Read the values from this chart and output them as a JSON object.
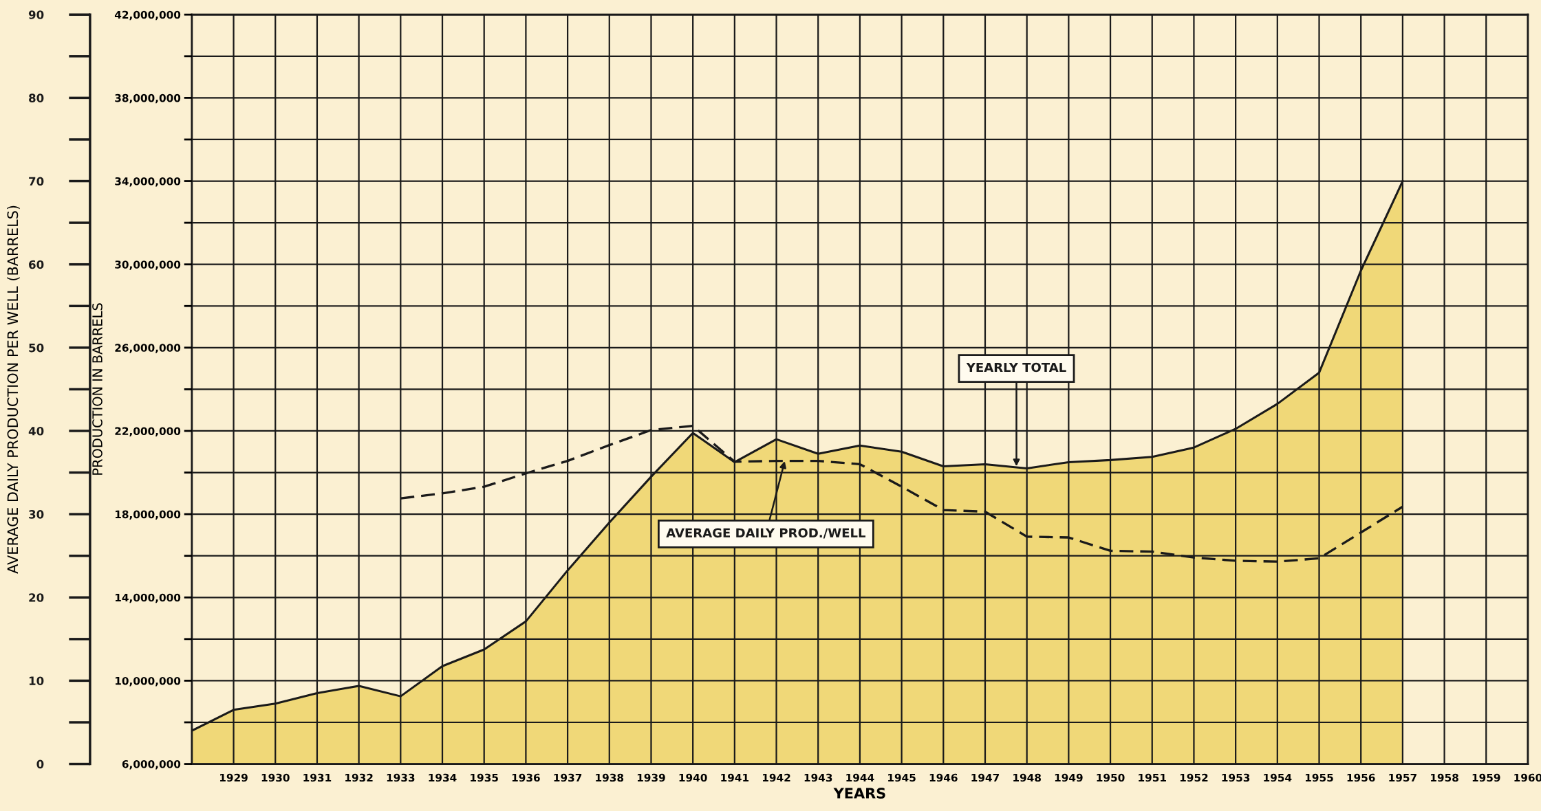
{
  "chart_data": {
    "type": "area",
    "xlabel": "YEARS",
    "ylabel": "PRODUCTION IN BARRELS",
    "y2label": "AVERAGE DAILY PRODUCTION PER WELL (BARRELS)",
    "xlim": [
      1928,
      1960
    ],
    "xticks": [
      {
        "value": 1928,
        "label": null
      },
      1929,
      1930,
      1931,
      1932,
      1933,
      1934,
      1935,
      1936,
      1937,
      1938,
      1939,
      1940,
      1941,
      1942,
      1943,
      1944,
      1945,
      1946,
      1947,
      1948,
      1949,
      1950,
      1951,
      1952,
      1953,
      1954,
      1955,
      1956,
      1957,
      1958,
      1959,
      1960
    ],
    "ylim": [
      6000000,
      42000000
    ],
    "yticks": [
      {
        "value": 6000000,
        "label": "6,000,000"
      },
      {
        "value": 8000000,
        "label": null
      },
      {
        "value": 10000000,
        "label": "10,000,000"
      },
      {
        "value": 12000000,
        "label": null
      },
      {
        "value": 14000000,
        "label": "14,000,000"
      },
      {
        "value": 16000000,
        "label": null
      },
      {
        "value": 18000000,
        "label": "18,000,000"
      },
      {
        "value": 20000000,
        "label": null
      },
      {
        "value": 22000000,
        "label": "22,000,000"
      },
      {
        "value": 24000000,
        "label": null
      },
      {
        "value": 26000000,
        "label": "26,000,000"
      },
      {
        "value": 28000000,
        "label": null
      },
      {
        "value": 30000000,
        "label": "30,000,000"
      },
      {
        "value": 32000000,
        "label": null
      },
      {
        "value": 34000000,
        "label": "34,000,000"
      },
      {
        "value": 36000000,
        "label": null
      },
      {
        "value": 38000000,
        "label": "38,000,000"
      },
      {
        "value": 40000000,
        "label": null
      },
      {
        "value": 42000000,
        "label": "42,000,000"
      }
    ],
    "y2lim": [
      0,
      90
    ],
    "y2ticks": [
      0,
      {
        "value": 5,
        "label": null
      },
      10,
      {
        "value": 15,
        "label": null
      },
      20,
      {
        "value": 25,
        "label": null
      },
      30,
      {
        "value": 35,
        "label": null
      },
      40,
      {
        "value": 45,
        "label": null
      },
      50,
      {
        "value": 55,
        "label": null
      },
      60,
      {
        "value": 65,
        "label": null
      },
      70,
      {
        "value": 75,
        "label": null
      },
      80,
      {
        "value": 85,
        "label": null
      },
      90
    ],
    "grid": true,
    "legend": false,
    "series": [
      {
        "color": "#f0d878",
        "x": [
          1928,
          1929,
          1930,
          1931,
          1932,
          1933,
          1934,
          1935,
          1936,
          1937,
          1938,
          1939,
          1940,
          1941,
          1942,
          1943,
          1944,
          1945,
          1946,
          1947,
          1948,
          1949,
          1950,
          1951,
          1952,
          1953,
          1954,
          1955,
          1956,
          1957
        ],
        "values": [
          7600000,
          8600000,
          8900000,
          9400000,
          9750000,
          9250000,
          10700000,
          11500000,
          12850000,
          15300000,
          17600000,
          19800000,
          21900000,
          20500000,
          21600000,
          20900000,
          21300000,
          21000000,
          20300000,
          20400000,
          20200000,
          20500000,
          20600000,
          20750000,
          21200000,
          22100000,
          23300000,
          24800000,
          29700000,
          34000000
        ]
      },
      {
        "type": "line",
        "axis": "y2",
        "color": "#1a1a1a",
        "line_style": "dashed",
        "marker": "none",
        "x": [
          1933,
          1934,
          1935,
          1936,
          1937,
          1938,
          1939,
          1940,
          1941,
          1942,
          1943,
          1944,
          1945,
          1946,
          1947,
          1948,
          1949,
          1950,
          1951,
          1952,
          1953,
          1954,
          1955,
          1956,
          1957
        ],
        "values": [
          31.9,
          32.5,
          33.3,
          34.9,
          36.4,
          38.3,
          40.1,
          40.6,
          36.3,
          36.4,
          36.4,
          36.0,
          33.3,
          30.5,
          30.3,
          27.3,
          27.2,
          25.6,
          25.5,
          24.8,
          24.4,
          24.3,
          24.7,
          27.8,
          30.9
        ]
      }
    ],
    "annotations": [
      {
        "text": "YEARLY TOTAL",
        "x": 1947.75,
        "y": 20300000
      },
      {
        "text": "AVERAGE DAILY PROD./WELL",
        "x": 1942.2,
        "y": 20550000
      }
    ]
  }
}
